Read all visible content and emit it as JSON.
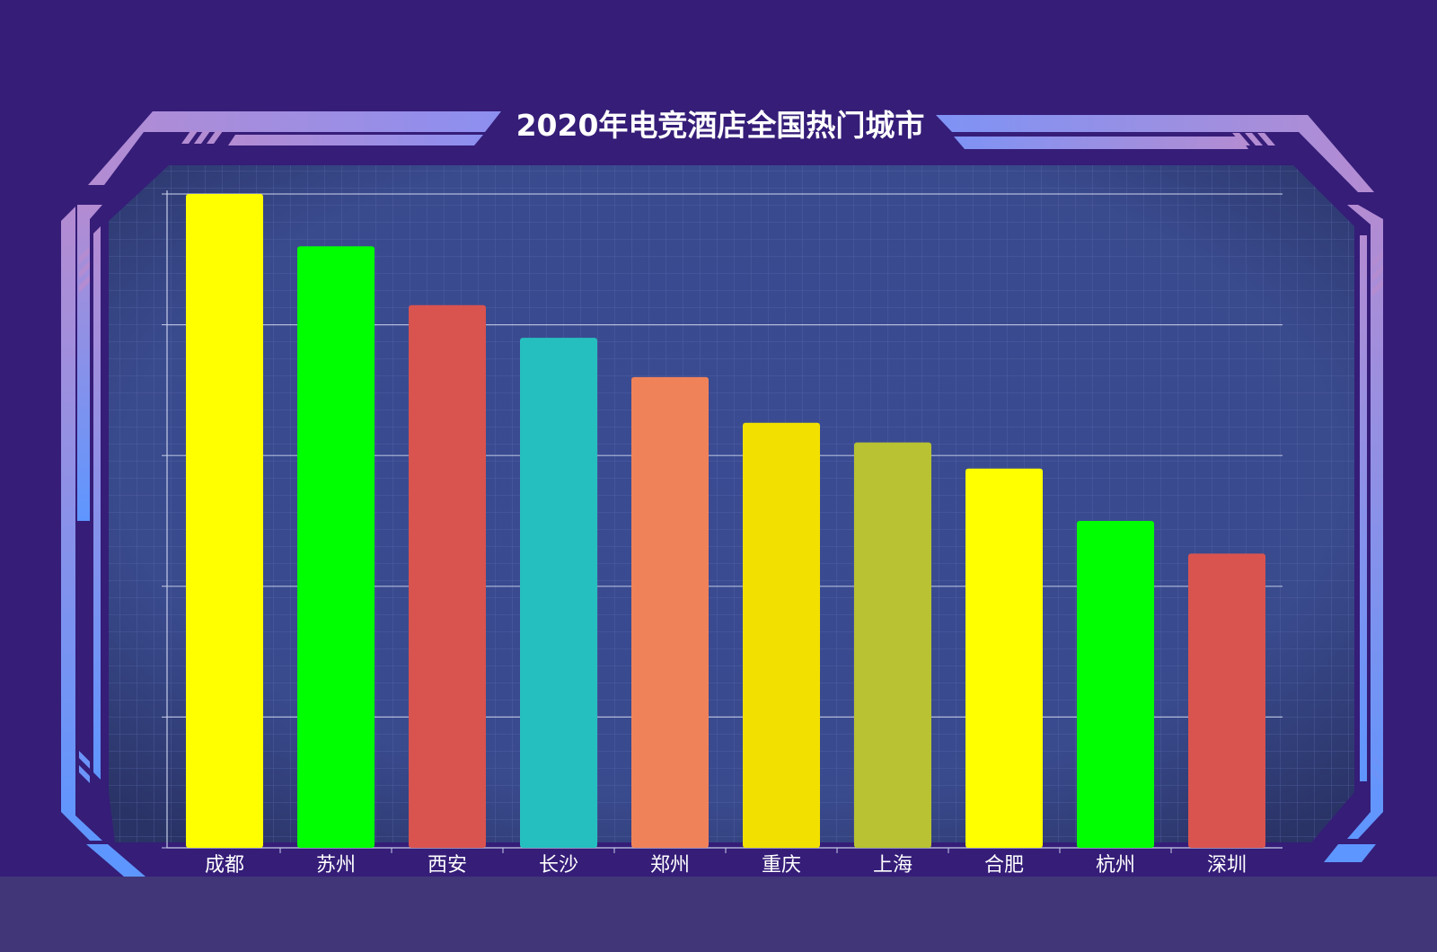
{
  "title": "2020年电竞酒店全国热门城市",
  "colors": {
    "page_bg": "#351d78",
    "panel_bg": "#37498e",
    "frame_start": "#b48cd2",
    "frame_end": "#5e96ff",
    "grid_line": "#c7cde8",
    "label": "#ffffff"
  },
  "chart_data": {
    "type": "bar",
    "title": "2020年电竞酒店全国热门城市",
    "xlabel": "",
    "ylabel": "",
    "categories": [
      "成都",
      "苏州",
      "西安",
      "长沙",
      "郑州",
      "重庆",
      "上海",
      "合肥",
      "杭州",
      "深圳"
    ],
    "values": [
      100,
      92,
      83,
      78,
      72,
      65,
      62,
      58,
      50,
      45
    ],
    "colors": [
      "#ffff00",
      "#00ff00",
      "#d9534f",
      "#26bfbf",
      "#f0825a",
      "#f2e000",
      "#b8c232",
      "#ffff00",
      "#00ff00",
      "#d9534f"
    ],
    "ylim": [
      0,
      100
    ],
    "grid": true,
    "legend": "none"
  }
}
